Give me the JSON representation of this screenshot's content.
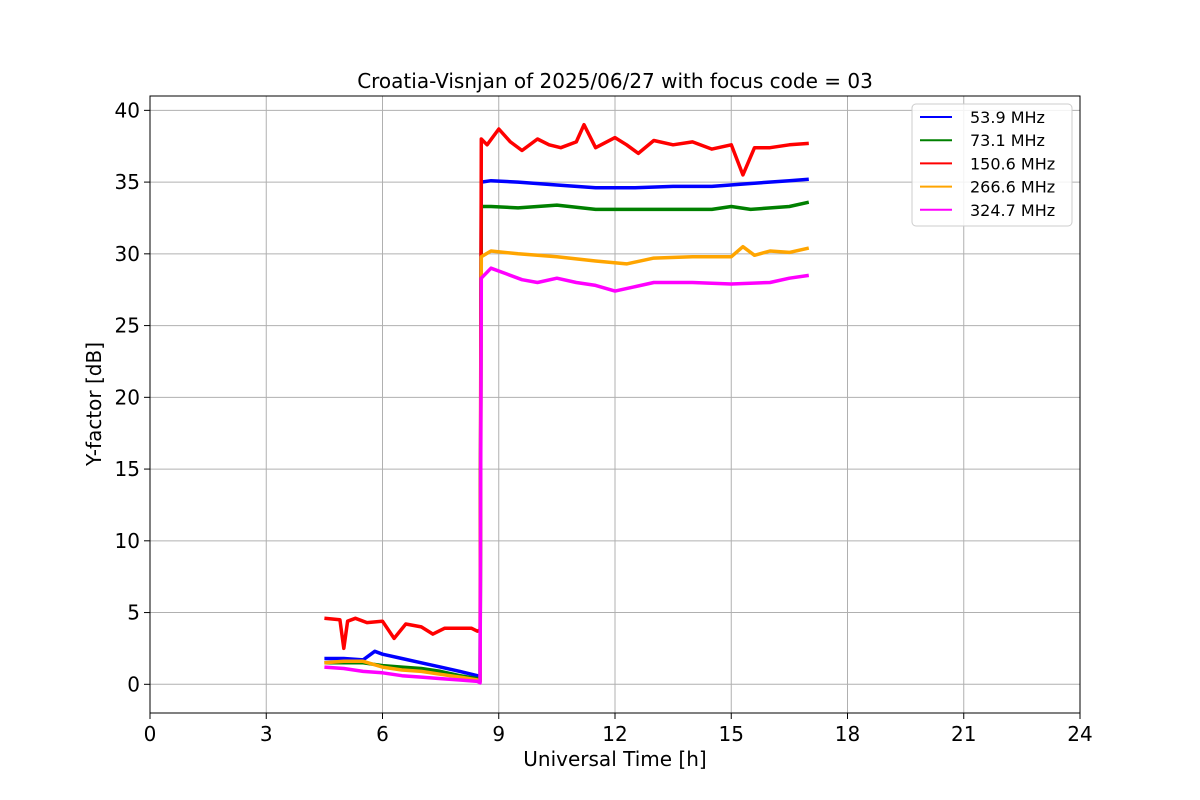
{
  "chart_data": {
    "type": "line",
    "title": "Croatia-Visnjan of 2025/06/27 with focus code = 03",
    "xlabel": "Universal Time [h]",
    "ylabel": "Y-factor [dB]",
    "xlim": [
      0,
      24
    ],
    "ylim": [
      -2,
      41
    ],
    "xticks": [
      0,
      3,
      6,
      9,
      12,
      15,
      18,
      21,
      24
    ],
    "yticks": [
      0,
      5,
      10,
      15,
      20,
      25,
      30,
      35,
      40
    ],
    "grid": true,
    "legend_position": "top-right",
    "series": [
      {
        "name": "  53.9 MHz",
        "color": "#0000ff",
        "x": [
          4.5,
          5.0,
          5.5,
          5.8,
          6.0,
          6.5,
          7.0,
          7.5,
          8.0,
          8.45,
          8.52,
          8.55,
          8.8,
          9.5,
          10.5,
          11.5,
          12.5,
          13.5,
          14.5,
          15.5,
          16.5,
          17.0
        ],
        "y": [
          1.8,
          1.8,
          1.7,
          2.3,
          2.1,
          1.8,
          1.5,
          1.2,
          0.9,
          0.6,
          0.3,
          35.0,
          35.1,
          35.0,
          34.8,
          34.6,
          34.6,
          34.7,
          34.7,
          34.9,
          35.1,
          35.2
        ]
      },
      {
        "name": "  73.1 MHz",
        "color": "#008000",
        "x": [
          4.5,
          5.0,
          5.5,
          6.0,
          6.5,
          7.0,
          7.5,
          8.0,
          8.45,
          8.52,
          8.55,
          8.8,
          9.5,
          10.5,
          11.5,
          12.5,
          13.5,
          14.5,
          15.0,
          15.5,
          16.5,
          17.0
        ],
        "y": [
          1.5,
          1.5,
          1.5,
          1.3,
          1.2,
          1.1,
          0.9,
          0.6,
          0.4,
          0.2,
          33.3,
          33.3,
          33.2,
          33.4,
          33.1,
          33.1,
          33.1,
          33.1,
          33.3,
          33.1,
          33.3,
          33.6
        ]
      },
      {
        "name": "150.6 MHz",
        "color": "#ff0000",
        "x": [
          4.5,
          4.9,
          5.0,
          5.1,
          5.3,
          5.6,
          6.0,
          6.3,
          6.6,
          7.0,
          7.3,
          7.6,
          8.0,
          8.3,
          8.45,
          8.52,
          8.55,
          8.7,
          9.0,
          9.3,
          9.6,
          10.0,
          10.3,
          10.6,
          11.0,
          11.2,
          11.5,
          12.0,
          12.3,
          12.6,
          13.0,
          13.5,
          14.0,
          14.5,
          15.0,
          15.3,
          15.6,
          16.0,
          16.5,
          17.0
        ],
        "y": [
          4.6,
          4.5,
          2.5,
          4.4,
          4.6,
          4.3,
          4.4,
          3.2,
          4.2,
          4.0,
          3.5,
          3.9,
          3.9,
          3.9,
          3.7,
          3.8,
          38.0,
          37.6,
          38.7,
          37.8,
          37.2,
          38.0,
          37.6,
          37.4,
          37.8,
          39.0,
          37.4,
          38.1,
          37.6,
          37.0,
          37.9,
          37.6,
          37.8,
          37.3,
          37.6,
          35.5,
          37.4,
          37.4,
          37.6,
          37.7
        ]
      },
      {
        "name": "266.6 MHz",
        "color": "#ffa500",
        "x": [
          4.5,
          5.0,
          5.5,
          6.0,
          6.5,
          7.0,
          7.5,
          8.0,
          8.45,
          8.52,
          8.55,
          8.8,
          9.5,
          10.5,
          11.5,
          12.3,
          13.0,
          14.0,
          15.0,
          15.3,
          15.6,
          16.0,
          16.5,
          17.0
        ],
        "y": [
          1.5,
          1.6,
          1.6,
          1.2,
          1.0,
          0.9,
          0.7,
          0.5,
          0.3,
          0.2,
          29.8,
          30.2,
          30.0,
          29.8,
          29.5,
          29.3,
          29.7,
          29.8,
          29.8,
          30.5,
          29.9,
          30.2,
          30.1,
          30.4
        ]
      },
      {
        "name": "324.7 MHz",
        "color": "#ff00ff",
        "x": [
          4.5,
          5.0,
          5.5,
          6.0,
          6.5,
          7.0,
          7.5,
          8.0,
          8.45,
          8.52,
          8.55,
          8.8,
          9.2,
          9.6,
          10.0,
          10.5,
          11.0,
          11.5,
          12.0,
          12.5,
          13.0,
          14.0,
          15.0,
          16.0,
          16.5,
          17.0
        ],
        "y": [
          1.2,
          1.1,
          0.9,
          0.8,
          0.6,
          0.5,
          0.4,
          0.3,
          0.2,
          0.1,
          28.3,
          29.0,
          28.6,
          28.2,
          28.0,
          28.3,
          28.0,
          27.8,
          27.4,
          27.7,
          28.0,
          28.0,
          27.9,
          28.0,
          28.3,
          28.5
        ]
      }
    ]
  }
}
